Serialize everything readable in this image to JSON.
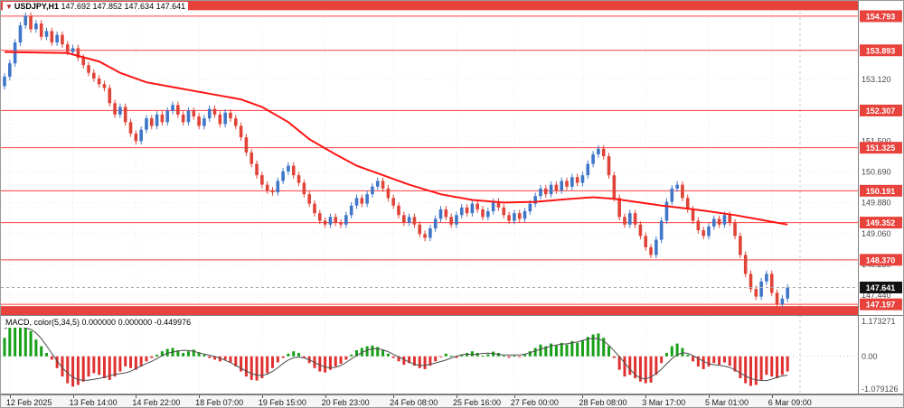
{
  "header": {
    "marker_icon": "▼",
    "symbol": "USDJPY,H1",
    "ohlc": "147.692 147.852 147.634 147.641"
  },
  "macd_panel": {
    "label": "MACD, color(5,34,5) 0.000000 0.000000 -0.449976"
  },
  "colors": {
    "up_candle": "#3f76c8",
    "down_candle": "#e04337",
    "ma_line": "#ff1414",
    "level_line": "#ff4040",
    "level_badge": "#e8423c",
    "zone_fill": "#e8423c",
    "current_badge": "#111111",
    "current_line": "#aaaaaa",
    "hist_up": "#17a017",
    "hist_down": "#e03131",
    "signal_line": "#4d4d4d",
    "grid": "#e6e6e6",
    "axis_text": "#4a4a4a",
    "separator": "#808080"
  },
  "price_axis": {
    "top": 155.196,
    "bottom": 146.915,
    "ticks": [
      {
        "v": 153.12,
        "label": "153.120"
      },
      {
        "v": 151.5,
        "label": "151.500"
      },
      {
        "v": 150.69,
        "label": "150.690"
      },
      {
        "v": 149.88,
        "label": "149.880"
      },
      {
        "v": 149.06,
        "label": "149.060"
      },
      {
        "v": 148.25,
        "label": "148.250"
      },
      {
        "v": 147.44,
        "label": "147.440"
      }
    ]
  },
  "levels": [
    {
      "value": 154.793,
      "label": "154.793"
    },
    {
      "value": 153.893,
      "label": "153.893"
    },
    {
      "value": 152.307,
      "label": "152.307"
    },
    {
      "value": 151.325,
      "label": "151.325"
    },
    {
      "value": 150.191,
      "label": "150.191"
    },
    {
      "value": 149.352,
      "label": "149.352"
    },
    {
      "value": 148.37,
      "label": "148.370"
    },
    {
      "value": 147.197,
      "label": "147.197"
    }
  ],
  "zones": [
    {
      "from": 155.196,
      "to": 154.95
    },
    {
      "from": 147.15,
      "to": 146.915
    }
  ],
  "current_price": {
    "value": 147.641,
    "label": "147.641"
  },
  "chart_data": [
    {
      "type": "candlestick",
      "name": "USDJPY H1 price",
      "ylim": [
        146.915,
        155.196
      ],
      "first_open": 152.95,
      "wick": 0.09,
      "x_ticks": [
        {
          "i": 1,
          "label": "12 Feb 2025"
        },
        {
          "i": 13,
          "label": "13 Feb 14:00"
        },
        {
          "i": 25,
          "label": "14 Feb 22:00"
        },
        {
          "i": 37,
          "label": "18 Feb 07:00"
        },
        {
          "i": 49,
          "label": "19 Feb 15:00"
        },
        {
          "i": 61,
          "label": "20 Feb 23:00"
        },
        {
          "i": 74,
          "label": "24 Feb 08:00"
        },
        {
          "i": 86,
          "label": "25 Feb 16:00"
        },
        {
          "i": 97,
          "label": "27 Feb 00:00"
        },
        {
          "i": 110,
          "label": "28 Feb 08:00"
        },
        {
          "i": 122,
          "label": "3 Mar 17:00"
        },
        {
          "i": 134,
          "label": "5 Mar 01:00"
        },
        {
          "i": 146,
          "label": "6 Mar 09:00"
        }
      ],
      "closes": [
        153.2,
        153.55,
        154.1,
        154.55,
        154.8,
        154.45,
        154.6,
        154.25,
        154.4,
        154.1,
        154.3,
        154.05,
        153.85,
        153.95,
        153.7,
        153.5,
        153.3,
        153.15,
        153.0,
        152.9,
        152.5,
        152.2,
        152.4,
        152.0,
        151.7,
        151.5,
        151.8,
        152.1,
        151.9,
        152.2,
        152.0,
        152.3,
        152.45,
        152.2,
        152.0,
        152.3,
        152.15,
        151.9,
        152.1,
        152.35,
        152.2,
        151.95,
        152.25,
        152.1,
        151.9,
        151.6,
        151.2,
        150.9,
        150.6,
        150.35,
        150.2,
        150.15,
        150.45,
        150.7,
        150.85,
        150.6,
        150.4,
        150.1,
        149.85,
        149.6,
        149.4,
        149.3,
        149.5,
        149.35,
        149.3,
        149.55,
        149.8,
        150.0,
        149.85,
        150.1,
        150.3,
        150.45,
        150.25,
        150.0,
        149.8,
        149.55,
        149.35,
        149.5,
        149.3,
        149.05,
        148.95,
        149.2,
        149.45,
        149.7,
        149.5,
        149.3,
        149.55,
        149.75,
        149.6,
        149.85,
        149.7,
        149.5,
        149.65,
        149.9,
        149.75,
        149.55,
        149.4,
        149.6,
        149.45,
        149.65,
        149.85,
        150.05,
        150.25,
        150.1,
        150.35,
        150.2,
        150.45,
        150.3,
        150.55,
        150.4,
        150.6,
        150.9,
        151.15,
        151.3,
        151.1,
        150.6,
        150.0,
        149.5,
        149.3,
        149.6,
        149.3,
        149.0,
        148.7,
        148.5,
        148.9,
        149.4,
        149.9,
        150.25,
        150.35,
        150.0,
        149.7,
        149.4,
        149.15,
        149.0,
        149.25,
        149.45,
        149.3,
        149.55,
        149.35,
        149.0,
        148.5,
        148.0,
        147.6,
        147.4,
        147.8,
        148.0,
        147.5,
        147.2,
        147.35,
        147.641
      ],
      "ma_red_points": [
        [
          0,
          153.85
        ],
        [
          12,
          153.82
        ],
        [
          18,
          153.6
        ],
        [
          22,
          153.3
        ],
        [
          27,
          153.05
        ],
        [
          33,
          152.9
        ],
        [
          39,
          152.75
        ],
        [
          45,
          152.6
        ],
        [
          49,
          152.4
        ],
        [
          54,
          152.0
        ],
        [
          58,
          151.55
        ],
        [
          63,
          151.15
        ],
        [
          67,
          150.85
        ],
        [
          72,
          150.6
        ],
        [
          77,
          150.35
        ],
        [
          83,
          150.1
        ],
        [
          89,
          149.95
        ],
        [
          95,
          149.88
        ],
        [
          101,
          149.9
        ],
        [
          107,
          149.97
        ],
        [
          112,
          150.02
        ],
        [
          116,
          149.98
        ],
        [
          121,
          149.88
        ],
        [
          125,
          149.8
        ],
        [
          130,
          149.72
        ],
        [
          134,
          149.65
        ],
        [
          139,
          149.55
        ],
        [
          143,
          149.45
        ],
        [
          149,
          149.3
        ]
      ]
    },
    {
      "type": "bar",
      "name": "MACD histogram (5,34,5)",
      "ylim": [
        -1.079126,
        1.173271
      ],
      "axis_ticks": [
        {
          "v": 1.173271,
          "label": "1.173271"
        },
        {
          "v": 0,
          "label": "0.00"
        },
        {
          "v": -1.079126,
          "label": "-1.079126"
        }
      ],
      "values": [
        0.55,
        0.85,
        1.05,
        1.15,
        1.0,
        0.75,
        0.5,
        0.3,
        0.1,
        -0.1,
        -0.35,
        -0.6,
        -0.8,
        -0.9,
        -0.85,
        -0.75,
        -0.6,
        -0.5,
        -0.55,
        -0.65,
        -0.7,
        -0.6,
        -0.45,
        -0.3,
        -0.35,
        -0.4,
        -0.3,
        -0.15,
        -0.05,
        0.05,
        0.15,
        0.22,
        0.25,
        0.18,
        0.1,
        0.15,
        0.2,
        0.12,
        0.05,
        -0.05,
        -0.1,
        -0.15,
        -0.1,
        -0.18,
        -0.3,
        -0.45,
        -0.6,
        -0.7,
        -0.72,
        -0.65,
        -0.5,
        -0.35,
        -0.18,
        -0.05,
        0.08,
        0.15,
        0.1,
        -0.05,
        -0.2,
        -0.35,
        -0.45,
        -0.48,
        -0.4,
        -0.3,
        -0.22,
        -0.1,
        0.05,
        0.18,
        0.25,
        0.3,
        0.32,
        0.28,
        0.18,
        0.08,
        -0.05,
        -0.15,
        -0.25,
        -0.2,
        -0.28,
        -0.35,
        -0.38,
        -0.28,
        -0.15,
        -0.02,
        0.08,
        0.02,
        -0.05,
        0.05,
        0.1,
        0.15,
        0.1,
        0.02,
        0.06,
        0.14,
        0.1,
        0.02,
        -0.04,
        0.02,
        -0.02,
        0.06,
        0.15,
        0.25,
        0.35,
        0.3,
        0.38,
        0.32,
        0.4,
        0.35,
        0.45,
        0.4,
        0.48,
        0.58,
        0.65,
        0.68,
        0.55,
        0.3,
        -0.05,
        -0.4,
        -0.6,
        -0.55,
        -0.65,
        -0.75,
        -0.8,
        -0.78,
        -0.55,
        -0.2,
        0.1,
        0.3,
        0.38,
        0.25,
        0.05,
        -0.15,
        -0.3,
        -0.38,
        -0.3,
        -0.2,
        -0.25,
        -0.18,
        -0.28,
        -0.45,
        -0.65,
        -0.8,
        -0.88,
        -0.85,
        -0.7,
        -0.55,
        -0.6,
        -0.65,
        -0.55,
        -0.45
      ]
    }
  ]
}
